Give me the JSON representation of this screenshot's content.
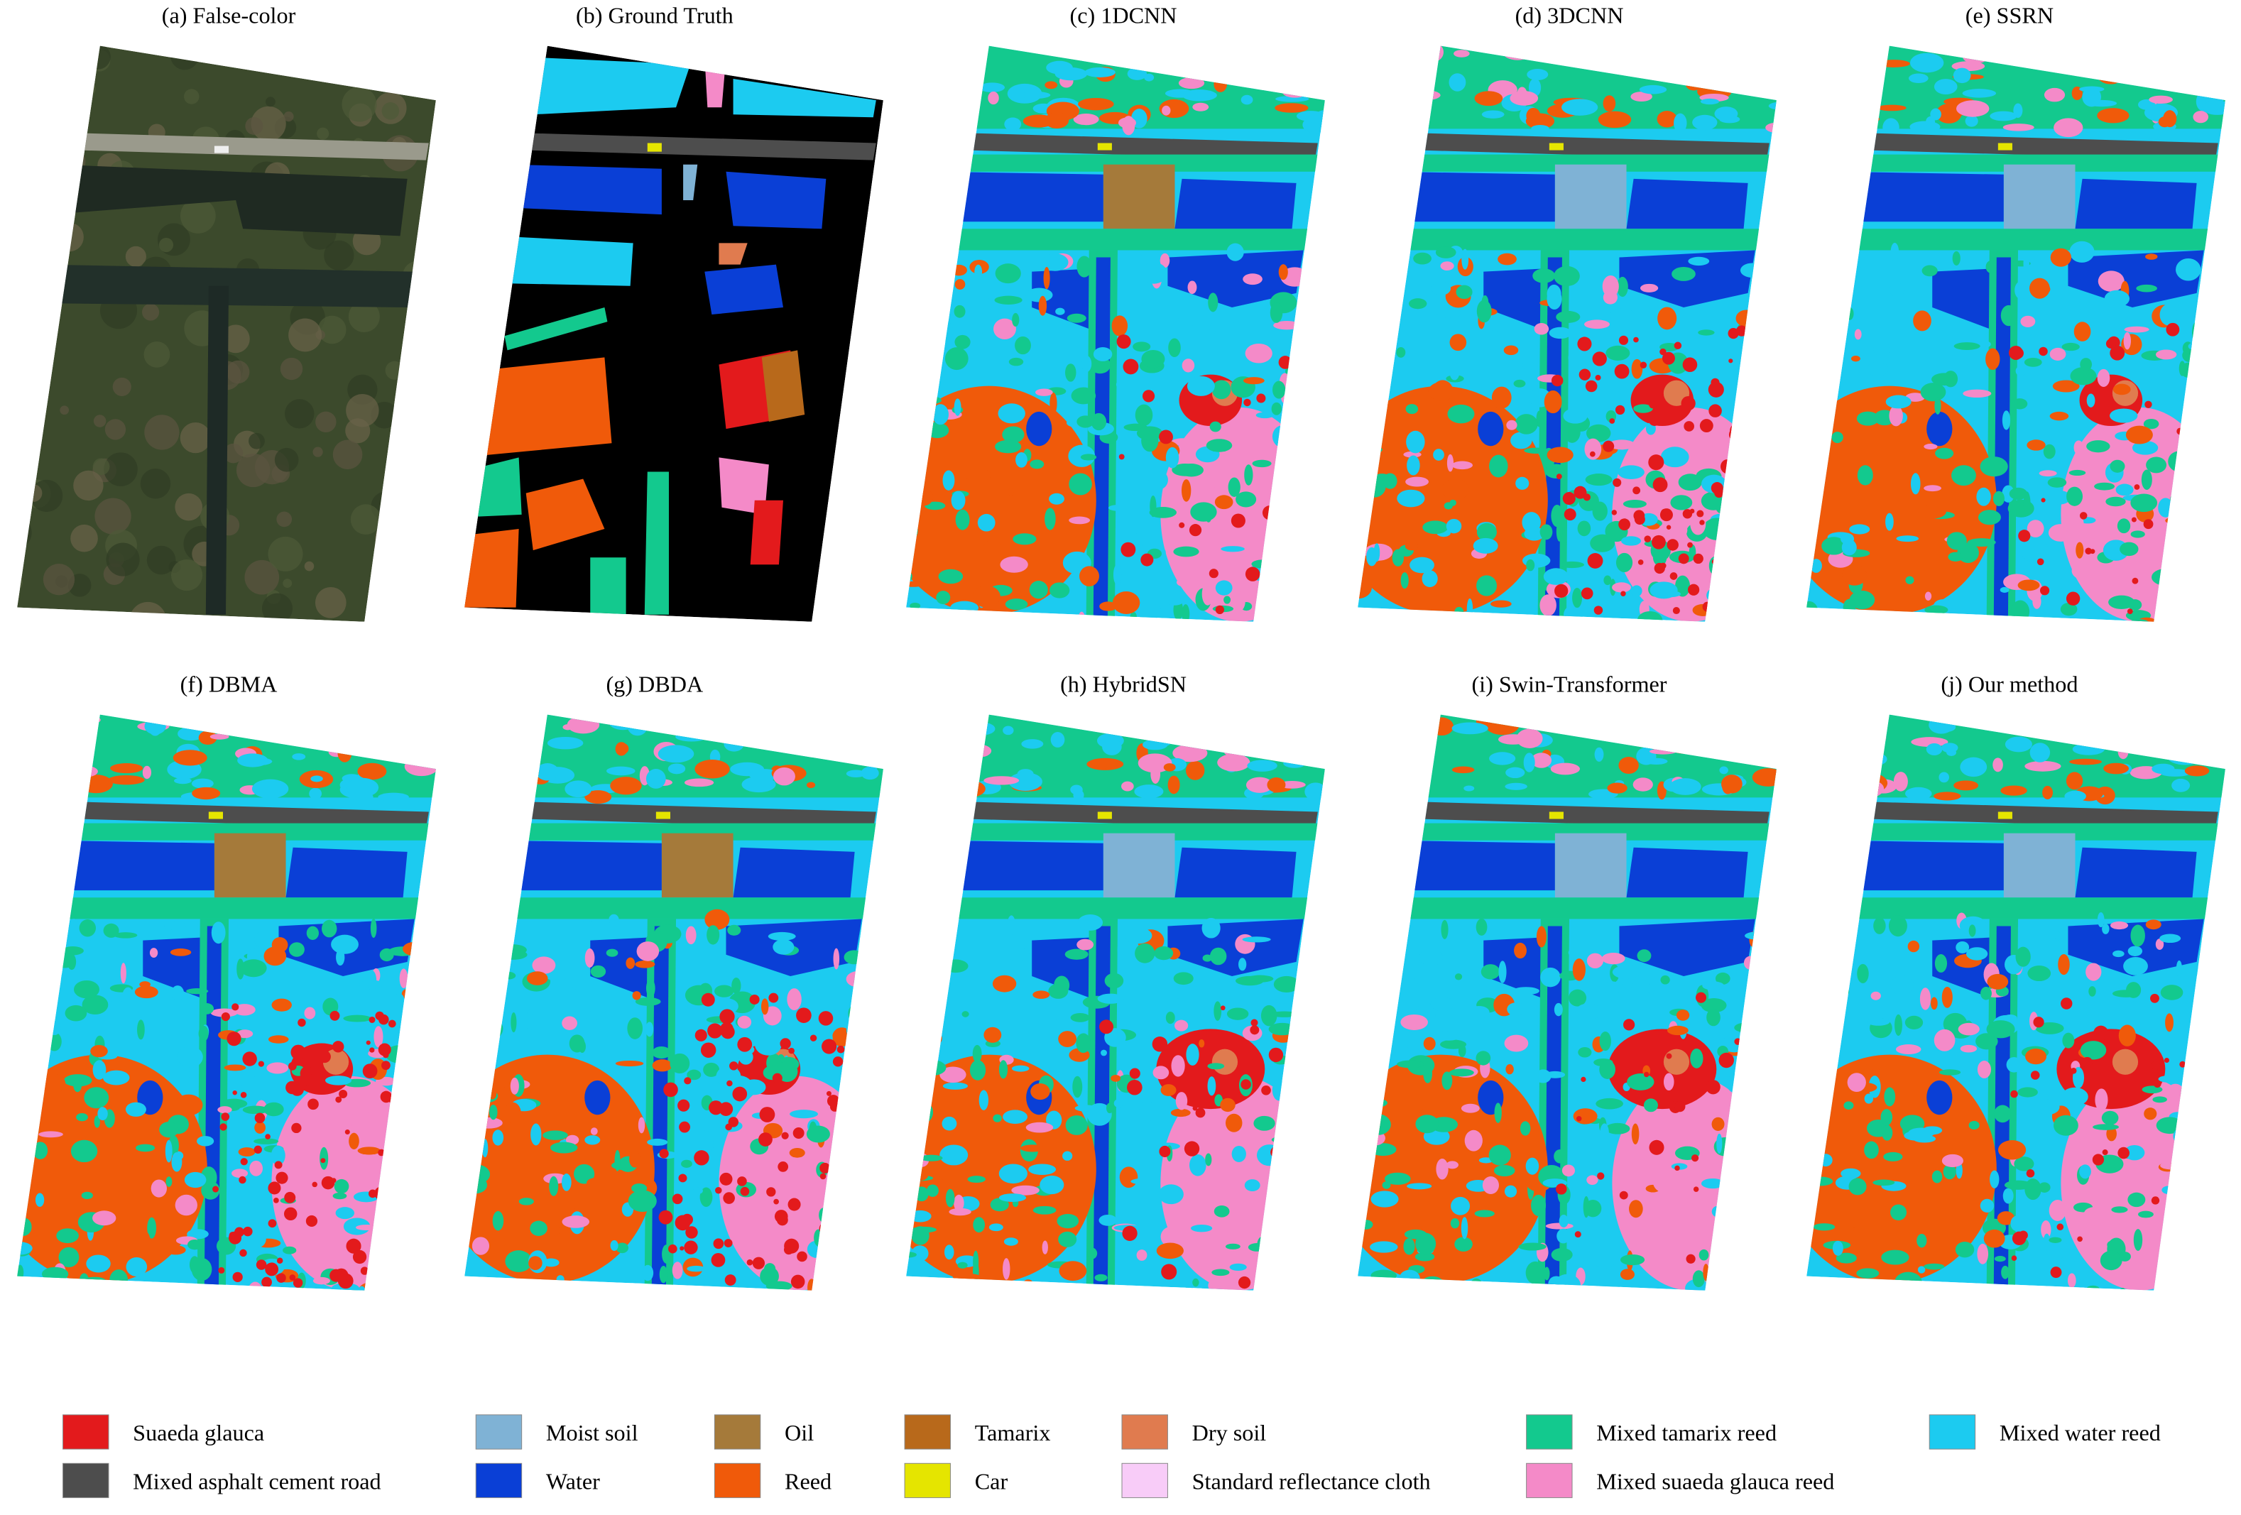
{
  "panels": [
    {
      "title": "(a) False-color"
    },
    {
      "title": "(b) Ground Truth"
    },
    {
      "title": "(c) 1DCNN"
    },
    {
      "title": "(d) 3DCNN"
    },
    {
      "title": "(e) SSRN"
    },
    {
      "title": "(f) DBMA"
    },
    {
      "title": "(g) DBDA"
    },
    {
      "title": "(h) HybridSN"
    },
    {
      "title": "(i) Swin-Transformer"
    },
    {
      "title": "(j) Our method"
    }
  ],
  "legend": [
    {
      "label": "Suaeda glauca",
      "color": "#e31a1c"
    },
    {
      "label": "Moist soil",
      "color": "#7fb2d5"
    },
    {
      "label": "Oil",
      "color": "#a57a3a"
    },
    {
      "label": "Tamarix",
      "color": "#b8691b"
    },
    {
      "label": "Dry soil",
      "color": "#e07b4f"
    },
    {
      "label": "Mixed tamarix reed",
      "color": "#13c98e"
    },
    {
      "label": "Mixed water reed",
      "color": "#1ccbf0"
    },
    {
      "label": "Mixed asphalt cement road",
      "color": "#4d4d4d"
    },
    {
      "label": "Water",
      "color": "#0a3fd6"
    },
    {
      "label": "Reed",
      "color": "#f05a0a"
    },
    {
      "label": "Car",
      "color": "#e5e500"
    },
    {
      "label": "Standard reflectance cloth",
      "color": "#f8ccf8"
    },
    {
      "label": "Mixed suaeda glauca reed",
      "color": "#f48ac8"
    }
  ]
}
